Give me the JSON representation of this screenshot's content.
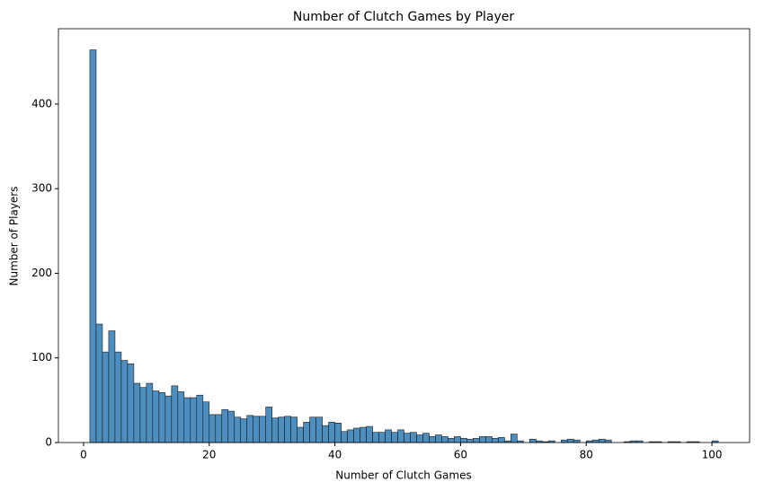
{
  "chart_data": {
    "type": "histogram",
    "title": "Number of Clutch Games by Player",
    "x_label": "Number of Clutch Games",
    "y_label": "Number of Players",
    "bins": [
      1,
      2,
      3,
      4,
      5,
      6,
      7,
      8,
      9,
      10,
      11,
      12,
      13,
      14,
      15,
      16,
      17,
      18,
      19,
      20,
      21,
      22,
      23,
      24,
      25,
      26,
      27,
      28,
      29,
      30,
      31,
      32,
      33,
      34,
      35,
      36,
      37,
      38,
      39,
      40,
      41,
      42,
      43,
      44,
      45,
      46,
      47,
      48,
      49,
      50,
      51,
      52,
      53,
      54,
      55,
      56,
      57,
      58,
      59,
      60,
      61,
      62,
      63,
      64,
      65,
      66,
      67,
      68,
      69,
      70,
      71,
      72,
      73,
      74,
      75,
      76,
      77,
      78,
      79,
      80,
      81,
      82,
      83,
      84,
      85,
      86,
      87,
      88,
      89,
      90,
      91,
      92,
      93,
      94,
      95,
      96,
      97,
      98,
      99,
      100,
      101
    ],
    "values": [
      464,
      140,
      107,
      132,
      107,
      97,
      93,
      70,
      65,
      70,
      61,
      59,
      55,
      67,
      60,
      53,
      53,
      56,
      48,
      33,
      33,
      39,
      37,
      30,
      28,
      32,
      31,
      31,
      42,
      29,
      30,
      31,
      30,
      18,
      24,
      30,
      30,
      20,
      24,
      23,
      13,
      15,
      17,
      18,
      19,
      12,
      12,
      15,
      12,
      15,
      11,
      12,
      9,
      11,
      7,
      9,
      7,
      5,
      7,
      5,
      4,
      5,
      7,
      7,
      5,
      6,
      2,
      10,
      2,
      0,
      4,
      2,
      1,
      2,
      0,
      3,
      4,
      3,
      0,
      2,
      3,
      4,
      3,
      0,
      0,
      1,
      2,
      2,
      0,
      1,
      1,
      0,
      1,
      1,
      0,
      1,
      1,
      0,
      0,
      2
    ],
    "color": "#4c8ebf",
    "edge_color": "#1a1a1a",
    "xlim": [
      -4,
      106
    ],
    "ylim": [
      0,
      489
    ],
    "xticks": [
      0,
      20,
      40,
      60,
      80,
      100
    ],
    "yticks": [
      0,
      100,
      200,
      300,
      400
    ],
    "grid": false
  }
}
